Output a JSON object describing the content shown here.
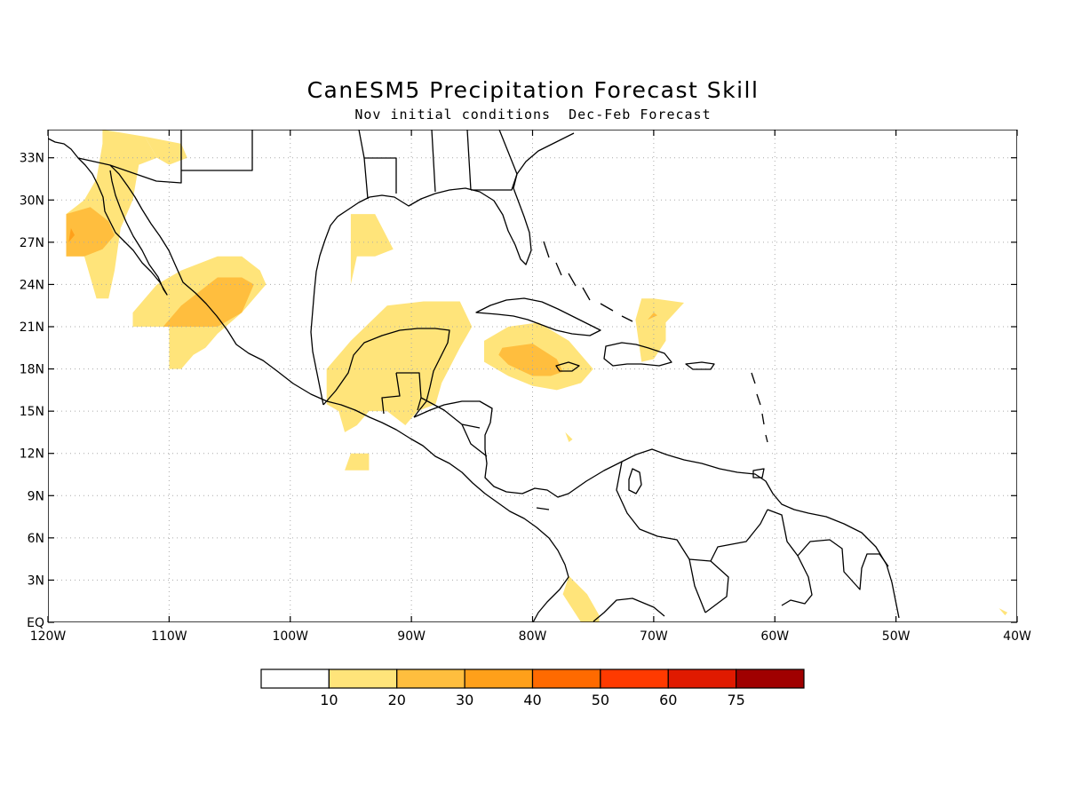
{
  "header": {
    "title": "CanESM5 Precipitation Forecast Skill",
    "subtitle": "Nov initial conditions  Dec-Feb Forecast"
  },
  "map": {
    "lon_range": [
      -120,
      -40
    ],
    "lat_range": [
      0,
      35
    ],
    "grid": "dotted",
    "x_ticks": [
      {
        "lon": -120,
        "label": "120W"
      },
      {
        "lon": -110,
        "label": "110W"
      },
      {
        "lon": -100,
        "label": "100W"
      },
      {
        "lon": -90,
        "label": "90W"
      },
      {
        "lon": -80,
        "label": "80W"
      },
      {
        "lon": -70,
        "label": "70W"
      },
      {
        "lon": -60,
        "label": "60W"
      },
      {
        "lon": -50,
        "label": "50W"
      },
      {
        "lon": -40,
        "label": "40W"
      }
    ],
    "y_ticks": [
      {
        "lat": 0,
        "label": "EQ"
      },
      {
        "lat": 3,
        "label": "3N"
      },
      {
        "lat": 6,
        "label": "6N"
      },
      {
        "lat": 9,
        "label": "9N"
      },
      {
        "lat": 12,
        "label": "12N"
      },
      {
        "lat": 15,
        "label": "15N"
      },
      {
        "lat": 18,
        "label": "18N"
      },
      {
        "lat": 21,
        "label": "21N"
      },
      {
        "lat": 24,
        "label": "24N"
      },
      {
        "lat": 27,
        "label": "27N"
      },
      {
        "lat": 30,
        "label": "30N"
      },
      {
        "lat": 33,
        "label": "33N"
      }
    ]
  },
  "colorbar": {
    "colors": [
      "#ffffff",
      "#ffe47a",
      "#ffbe3e",
      "#ffa01a",
      "#ff6a00",
      "#ff3a00",
      "#e01a00",
      "#a00000"
    ],
    "labels": [
      "10",
      "20",
      "30",
      "40",
      "50",
      "60",
      "75"
    ]
  },
  "skill_regions": [
    {
      "name": "baja-north",
      "level": 1,
      "pts": [
        [
          -115.5,
          35
        ],
        [
          -112,
          34.5
        ],
        [
          -111,
          33
        ],
        [
          -112.5,
          32.5
        ],
        [
          -113,
          30
        ],
        [
          -114,
          28
        ],
        [
          -114.5,
          25
        ],
        [
          -115,
          23
        ],
        [
          -116,
          23
        ],
        [
          -117,
          26
        ],
        [
          -118.5,
          26
        ],
        [
          -118.5,
          29
        ],
        [
          -117,
          30
        ],
        [
          -116,
          31.5
        ],
        [
          -115.5,
          34
        ]
      ]
    },
    {
      "name": "nw-mexico",
      "level": 1,
      "pts": [
        [
          -112,
          34.5
        ],
        [
          -109,
          34
        ],
        [
          -108.5,
          33
        ],
        [
          -110,
          32.5
        ],
        [
          -111,
          33
        ]
      ]
    },
    {
      "name": "baja-north-core",
      "level": 2,
      "pts": [
        [
          -118.5,
          26
        ],
        [
          -118.5,
          29
        ],
        [
          -116.5,
          29.5
        ],
        [
          -115,
          28.5
        ],
        [
          -114.5,
          27.5
        ],
        [
          -115.5,
          26.5
        ],
        [
          -117,
          26
        ]
      ]
    },
    {
      "name": "baja-north-dark",
      "level": 3,
      "pts": [
        [
          -118.3,
          27
        ],
        [
          -118.1,
          28
        ],
        [
          -117.8,
          27.5
        ]
      ]
    },
    {
      "name": "west-mexico",
      "level": 1,
      "pts": [
        [
          -113,
          22
        ],
        [
          -111,
          24
        ],
        [
          -109,
          25
        ],
        [
          -106,
          26
        ],
        [
          -104,
          26
        ],
        [
          -102.5,
          25
        ],
        [
          -102,
          24
        ],
        [
          -104,
          22
        ],
        [
          -106,
          20.5
        ],
        [
          -107,
          19.5
        ],
        [
          -108,
          19
        ],
        [
          -109,
          18
        ],
        [
          -110,
          18
        ],
        [
          -110,
          21
        ],
        [
          -113,
          21
        ]
      ]
    },
    {
      "name": "west-mexico-core",
      "level": 2,
      "pts": [
        [
          -110.5,
          21
        ],
        [
          -109,
          22.5
        ],
        [
          -106,
          24.5
        ],
        [
          -104,
          24.5
        ],
        [
          -103,
          24
        ],
        [
          -104,
          22
        ],
        [
          -106,
          21
        ]
      ]
    },
    {
      "name": "gulf-west",
      "level": 1,
      "pts": [
        [
          -95,
          29
        ],
        [
          -93,
          29
        ],
        [
          -91.5,
          26.5
        ],
        [
          -93,
          26
        ],
        [
          -94.5,
          26
        ],
        [
          -95,
          24
        ]
      ]
    },
    {
      "name": "yucatan",
      "level": 1,
      "pts": [
        [
          -97,
          18
        ],
        [
          -95,
          20
        ],
        [
          -92,
          22.5
        ],
        [
          -89,
          22.8
        ],
        [
          -86,
          22.8
        ],
        [
          -85,
          21
        ],
        [
          -86,
          19.5
        ],
        [
          -87.5,
          17
        ],
        [
          -88,
          15.5
        ],
        [
          -89.5,
          15
        ],
        [
          -90.5,
          14
        ],
        [
          -92,
          15
        ],
        [
          -93.5,
          15
        ],
        [
          -94.5,
          14
        ],
        [
          -95.5,
          13.5
        ],
        [
          -96,
          15
        ],
        [
          -97,
          15.5
        ]
      ]
    },
    {
      "name": "pacific-south",
      "level": 1,
      "pts": [
        [
          -95,
          12
        ],
        [
          -93.5,
          12
        ],
        [
          -93.5,
          10.8
        ],
        [
          -95.5,
          10.8
        ]
      ]
    },
    {
      "name": "caribbean-jamaica",
      "level": 1,
      "pts": [
        [
          -84,
          20
        ],
        [
          -82,
          21
        ],
        [
          -79.5,
          21.3
        ],
        [
          -77,
          20
        ],
        [
          -75,
          18
        ],
        [
          -76,
          17
        ],
        [
          -78,
          16.5
        ],
        [
          -80,
          16.8
        ],
        [
          -82,
          17.5
        ],
        [
          -84,
          18.5
        ]
      ]
    },
    {
      "name": "caribbean-jamaica-core",
      "level": 2,
      "pts": [
        [
          -82.5,
          19.5
        ],
        [
          -80,
          19.8
        ],
        [
          -78,
          18.7
        ],
        [
          -77.5,
          17.8
        ],
        [
          -78.5,
          17.5
        ],
        [
          -80,
          17.5
        ],
        [
          -82,
          18.3
        ],
        [
          -82.8,
          19
        ]
      ]
    },
    {
      "name": "bahamas",
      "level": 1,
      "pts": [
        [
          -71.5,
          21.5
        ],
        [
          -71,
          23
        ],
        [
          -70,
          23
        ],
        [
          -67.5,
          22.7
        ],
        [
          -69,
          21.3
        ],
        [
          -69,
          20
        ],
        [
          -70,
          18.7
        ],
        [
          -71,
          18.5
        ]
      ]
    },
    {
      "name": "bahamas-core",
      "level": 2,
      "pts": [
        [
          -70.5,
          21.5
        ],
        [
          -70,
          22
        ],
        [
          -69.7,
          21.8
        ]
      ]
    },
    {
      "name": "caribbean-dot",
      "level": 1,
      "pts": [
        [
          -77.3,
          13.5
        ],
        [
          -77,
          12.8
        ],
        [
          -76.7,
          13
        ]
      ]
    },
    {
      "name": "colombia-south",
      "level": 1,
      "pts": [
        [
          -77,
          3.3
        ],
        [
          -75.5,
          2
        ],
        [
          -74.5,
          0.5
        ],
        [
          -74.5,
          0
        ],
        [
          -76,
          0
        ],
        [
          -77.5,
          2
        ]
      ]
    },
    {
      "name": "atlantic-dot",
      "level": 1,
      "pts": [
        [
          -41.5,
          1
        ],
        [
          -40.8,
          0.7
        ],
        [
          -41,
          0.5
        ]
      ]
    }
  ]
}
